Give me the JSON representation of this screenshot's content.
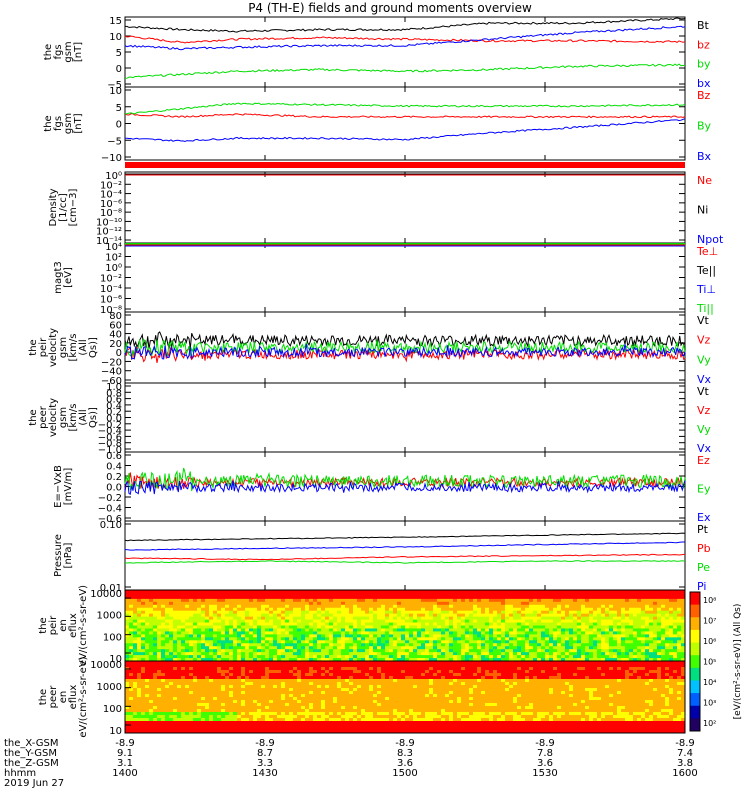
{
  "title": "P4 (TH-E) fields and ground moments overview",
  "colors": {
    "black": "#000000",
    "red": "#ff0000",
    "green": "#00dd00",
    "blue": "#0000ff",
    "white_bg": "#ffffff"
  },
  "x_axis": {
    "range_labels": [
      "1400",
      "1430",
      "1500",
      "1530",
      "1600"
    ],
    "ephemeris": [
      {
        "name": "the_X-GSM",
        "values": [
          "-8.9",
          "-8.9",
          "-8.9",
          "-8.9",
          "-8.9"
        ]
      },
      {
        "name": "the_Y-GSM",
        "values": [
          "9.1",
          "8.7",
          "8.3",
          "7.8",
          "7.4"
        ]
      },
      {
        "name": "the_Z-GSM",
        "values": [
          "3.1",
          "3.3",
          "3.6",
          "3.6",
          "3.8"
        ]
      },
      {
        "name": "hhmm",
        "values": [
          "1400",
          "1430",
          "1500",
          "1530",
          "1600"
        ]
      }
    ],
    "date": "2019 Jun 27"
  },
  "chart_data": [
    {
      "type": "line",
      "ylabel": "the fgs gsm [nT]",
      "ylim": [
        -5,
        15
      ],
      "yticks": [
        "15",
        "10",
        "5",
        "0",
        "−5"
      ],
      "legend": [
        "Bt",
        "bz",
        "by",
        "bx"
      ],
      "series": [
        {
          "name": "Bt",
          "color": "#000000",
          "x": [
            0,
            0.1,
            0.2,
            0.35,
            0.5,
            0.65,
            0.8,
            1.0
          ],
          "values": [
            13,
            12,
            11.5,
            12,
            12,
            14,
            14,
            15.5
          ]
        },
        {
          "name": "bz",
          "color": "#ff0000",
          "x": [
            0,
            0.1,
            0.2,
            0.35,
            0.5,
            0.65,
            0.8,
            1.0
          ],
          "values": [
            10,
            8,
            9,
            9.5,
            9,
            8.5,
            8.5,
            8.2
          ]
        },
        {
          "name": "by",
          "color": "#00dd00",
          "x": [
            0,
            0.1,
            0.2,
            0.35,
            0.5,
            0.65,
            0.8,
            1.0
          ],
          "values": [
            -3,
            -2,
            -1,
            -0.5,
            -1,
            -0.5,
            0.5,
            1
          ]
        },
        {
          "name": "bx",
          "color": "#0000ff",
          "x": [
            0,
            0.1,
            0.2,
            0.35,
            0.5,
            0.65,
            0.8,
            1.0
          ],
          "values": [
            7,
            6,
            6.5,
            7,
            7,
            9,
            11,
            13
          ]
        }
      ]
    },
    {
      "type": "line",
      "ylabel": "the fgs gsm [nT]",
      "ylim": [
        -15,
        10
      ],
      "yticks": [
        "10",
        "5",
        "0",
        "−5",
        "−10"
      ],
      "legend": [
        "Bz",
        "By",
        "Bx"
      ],
      "series": [
        {
          "name": "Bz",
          "color": "#ff0000",
          "x": [
            0,
            0.1,
            0.2,
            0.35,
            0.5,
            0.65,
            0.8,
            1.0
          ],
          "values": [
            1,
            0,
            1,
            0,
            0,
            0,
            0,
            0
          ]
        },
        {
          "name": "By",
          "color": "#00dd00",
          "x": [
            0,
            0.1,
            0.2,
            0.35,
            0.5,
            0.65,
            0.8,
            1.0
          ],
          "values": [
            1,
            3,
            5,
            4.5,
            4,
            4,
            4,
            4.5
          ]
        },
        {
          "name": "Bx",
          "color": "#0000ff",
          "x": [
            0,
            0.1,
            0.2,
            0.35,
            0.5,
            0.65,
            0.8,
            1.0
          ],
          "values": [
            -8,
            -9,
            -8,
            -8,
            -8.5,
            -6,
            -4,
            -1
          ]
        }
      ]
    },
    {
      "type": "line",
      "ylabel": "Density [1/cc] [cm−3]",
      "scale": "log",
      "yticks": [
        "10⁰",
        "10⁻²",
        "10⁻⁴",
        "10⁻⁶",
        "10⁻⁸",
        "10⁻¹⁰",
        "10⁻¹²",
        "10⁻¹⁴"
      ],
      "legend": [
        "Ne",
        "Ni",
        "Npot"
      ],
      "series": [
        {
          "name": "Ne",
          "color": "#ff0000",
          "note_position": "top",
          "values": [
            0.5,
            0.5
          ]
        },
        {
          "name": "Ni",
          "color": "#000000",
          "values": [
            0.5,
            0.5
          ]
        },
        {
          "name": "Npot",
          "color": "#0000ff",
          "values": [
            0.5,
            0.5
          ]
        }
      ]
    },
    {
      "type": "line",
      "ylabel": "magt3 [eV]",
      "scale": "log",
      "yticks": [
        "10⁴",
        "10²",
        "10⁰",
        "10⁻²",
        "10⁻⁴",
        "10⁻⁶",
        "10⁻⁸"
      ],
      "legend": [
        "Te⊥",
        "Te||",
        "Ti⊥",
        "Ti||"
      ],
      "series": [
        {
          "name": "Te⊥",
          "color": "#ff0000",
          "values": [
            10000,
            10000
          ]
        },
        {
          "name": "Te||",
          "color": "#000000",
          "values": [
            10000,
            10000
          ]
        },
        {
          "name": "Ti⊥",
          "color": "#0000ff",
          "values": [
            10000,
            10000
          ]
        },
        {
          "name": "Ti||",
          "color": "#00dd00",
          "values": [
            10000,
            10000
          ]
        }
      ]
    },
    {
      "type": "line",
      "ylabel": "the peir velocity gsm [km/s (All Qs)]",
      "ylim": [
        -60,
        80
      ],
      "yticks": [
        "80",
        "60",
        "40",
        "20",
        "0",
        "−20",
        "−40",
        "−60"
      ],
      "legend": [
        "Vt",
        "Vz",
        "Vy",
        "Vx"
      ],
      "series": [
        {
          "name": "Vt",
          "color": "#000000",
          "mean": 25,
          "amp": 12
        },
        {
          "name": "Vz",
          "color": "#ff0000",
          "mean": -5,
          "amp": 10
        },
        {
          "name": "Vy",
          "color": "#00dd00",
          "mean": 10,
          "amp": 12
        },
        {
          "name": "Vx",
          "color": "#0000ff",
          "mean": 0,
          "amp": 10
        }
      ]
    },
    {
      "type": "line",
      "ylabel": "the peer velocity gsm [km/s (All Qs)]",
      "ylim": [
        -1.0,
        1.0
      ],
      "yticks": [
        "1.0",
        "0.8",
        "0.6",
        "0.4",
        "0.2",
        "0.0",
        "−0.2",
        "−0.4",
        "−0.6",
        "−0.8",
        "−1.0"
      ],
      "legend": [
        "Vt",
        "Vz",
        "Vy",
        "Vx"
      ],
      "series": []
    },
    {
      "type": "line",
      "ylabel": "E=−VxB [mV/m]",
      "ylim": [
        -0.6,
        0.6
      ],
      "yticks": [
        "0.6",
        "0.4",
        "0.2",
        "0.0",
        "−0.2",
        "−0.4",
        "−0.6"
      ],
      "legend": [
        "Ez",
        "Ey",
        "Ex"
      ],
      "series": [
        {
          "name": "Ez",
          "color": "#ff0000",
          "mean": 0.08,
          "amp": 0.08
        },
        {
          "name": "Ey",
          "color": "#00dd00",
          "mean": 0.1,
          "amp": 0.12
        },
        {
          "name": "Ex",
          "color": "#0000ff",
          "mean": -0.02,
          "amp": 0.08
        }
      ]
    },
    {
      "type": "line",
      "ylabel": "Pressure [nPa]",
      "scale": "log",
      "yticks": [
        "0.10",
        "0.01"
      ],
      "legend": [
        "Pt",
        "Pb",
        "Pe",
        "Pi"
      ],
      "series": [
        {
          "name": "Pt",
          "color": "#000000",
          "x": [
            0,
            0.25,
            0.5,
            0.75,
            1.0
          ],
          "values": [
            0.18,
            0.2,
            0.22,
            0.25,
            0.28
          ]
        },
        {
          "name": "Pb",
          "color": "#ff0000",
          "x": [
            0,
            0.25,
            0.5,
            0.75,
            1.0
          ],
          "values": [
            0.06,
            0.055,
            0.065,
            0.07,
            0.075
          ]
        },
        {
          "name": "Pe",
          "color": "#00dd00",
          "x": [
            0,
            0.25,
            0.5,
            0.75,
            1.0
          ],
          "values": [
            0.045,
            0.05,
            0.045,
            0.05,
            0.05
          ]
        },
        {
          "name": "Pi",
          "color": "#0000ff",
          "x": [
            0,
            0.25,
            0.5,
            0.75,
            1.0
          ],
          "values": [
            0.1,
            0.11,
            0.12,
            0.14,
            0.16
          ]
        }
      ]
    },
    {
      "type": "heatmap",
      "ylabel": "the peir en eflux eV/(cm²-s-sr-eV)",
      "yticks": [
        "10000",
        "1000",
        "100",
        "10"
      ]
    },
    {
      "type": "heatmap",
      "ylabel": "the peer en eflux eV/(cm²-s-sr-eV)",
      "yticks": [
        "10000",
        "1000",
        "100",
        "10"
      ]
    }
  ],
  "colorbar": {
    "label": "[eV/(cm²-s-sr-eV)] (All Qs)",
    "upper_ticks": [
      "10⁶",
      "10⁵",
      "10⁴",
      "10³",
      "10²"
    ],
    "lower_ticks": [
      "10⁸",
      "10⁷",
      "10⁶",
      "10⁵",
      "10⁴",
      "10³",
      "10²"
    ]
  }
}
